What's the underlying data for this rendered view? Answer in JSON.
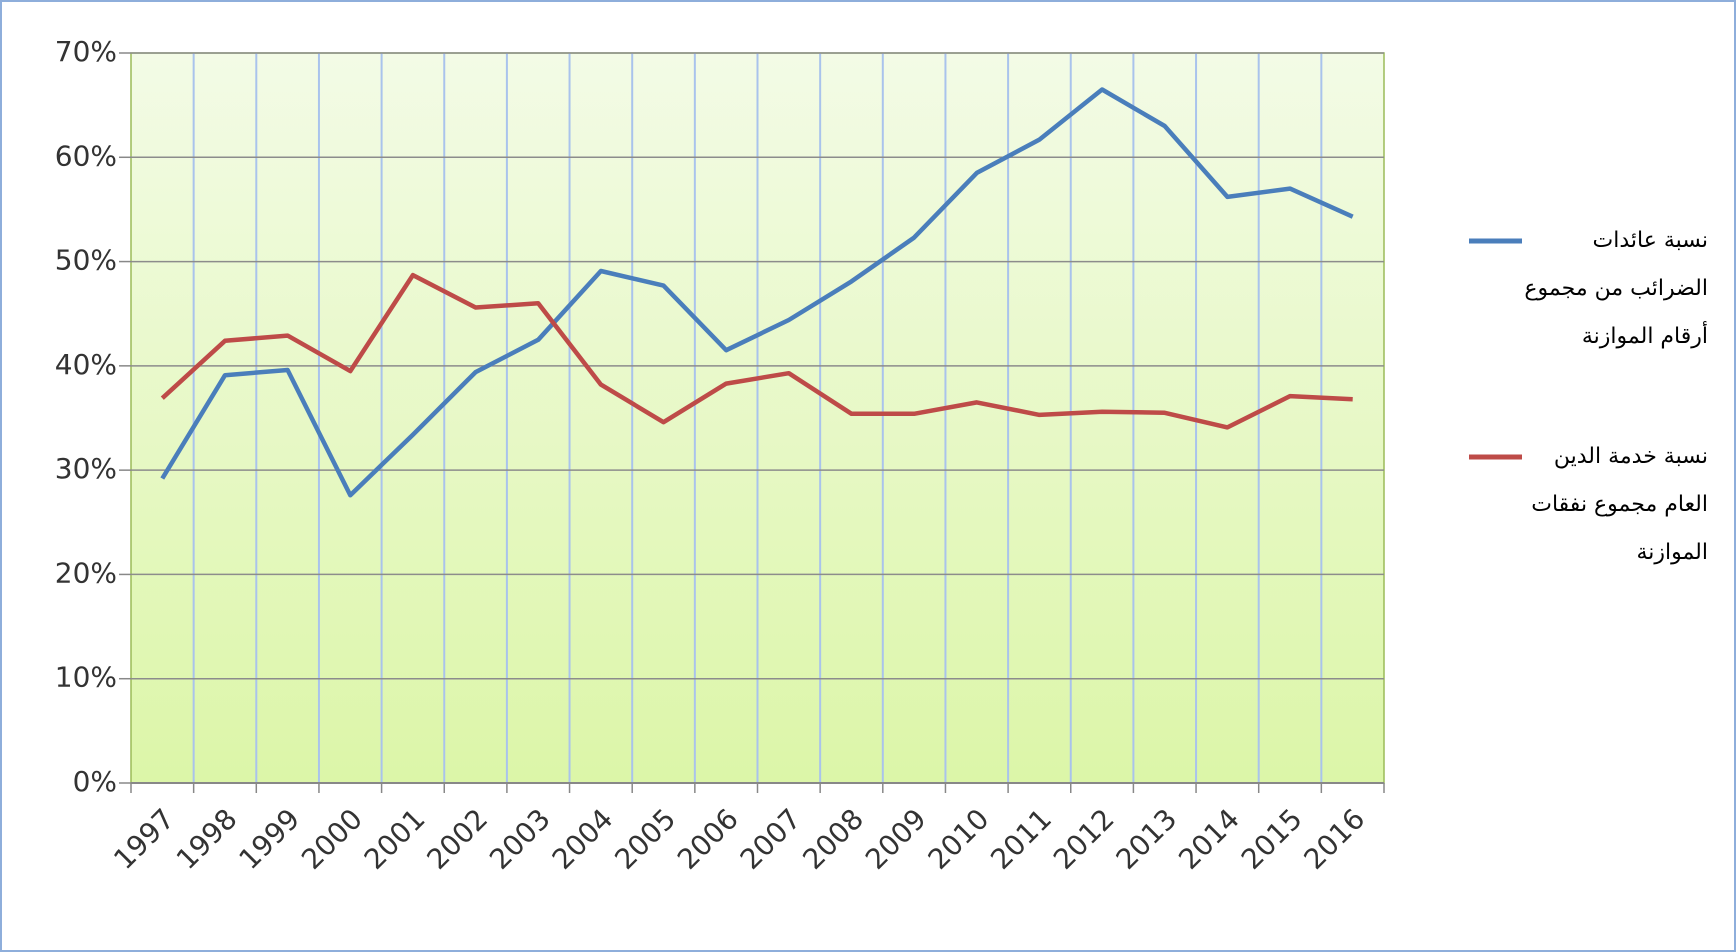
{
  "chart_data": {
    "type": "line",
    "categories": [
      "1997",
      "1998",
      "1999",
      "2000",
      "2001",
      "2002",
      "2003",
      "2004",
      "2005",
      "2006",
      "2007",
      "2008",
      "2009",
      "2010",
      "2011",
      "2012",
      "2013",
      "2014",
      "2015",
      "2016"
    ],
    "series": [
      {
        "name": "نسبة عائدات الضرائب من مجموع أرقام الموازنة",
        "color": "#4a7ebb",
        "values": [
          29.2,
          39.1,
          39.6,
          27.6,
          33.4,
          39.4,
          42.5,
          49.1,
          47.7,
          41.5,
          44.4,
          48.1,
          52.3,
          58.5,
          61.7,
          66.5,
          63.0,
          56.2,
          57.0,
          54.3
        ]
      },
      {
        "name": "نسبة خدمة الدين العام مجموع نفقات الموازنة",
        "color": "#be4b48",
        "values": [
          36.9,
          42.4,
          42.9,
          39.5,
          48.7,
          45.6,
          46.0,
          38.2,
          34.6,
          38.3,
          39.3,
          35.4,
          35.4,
          36.5,
          35.3,
          35.6,
          35.5,
          34.1,
          37.1,
          36.8
        ]
      }
    ],
    "ylim": [
      0,
      70
    ],
    "yticks": [
      {
        "value": 0,
        "label": "0%"
      },
      {
        "value": 10,
        "label": "10%"
      },
      {
        "value": 20,
        "label": "20%"
      },
      {
        "value": 30,
        "label": "30%"
      },
      {
        "value": 40,
        "label": "40%"
      },
      {
        "value": 50,
        "label": "50%"
      },
      {
        "value": 60,
        "label": "60%"
      },
      {
        "value": 70,
        "label": "70%"
      }
    ],
    "grid": true,
    "legend": "right"
  }
}
